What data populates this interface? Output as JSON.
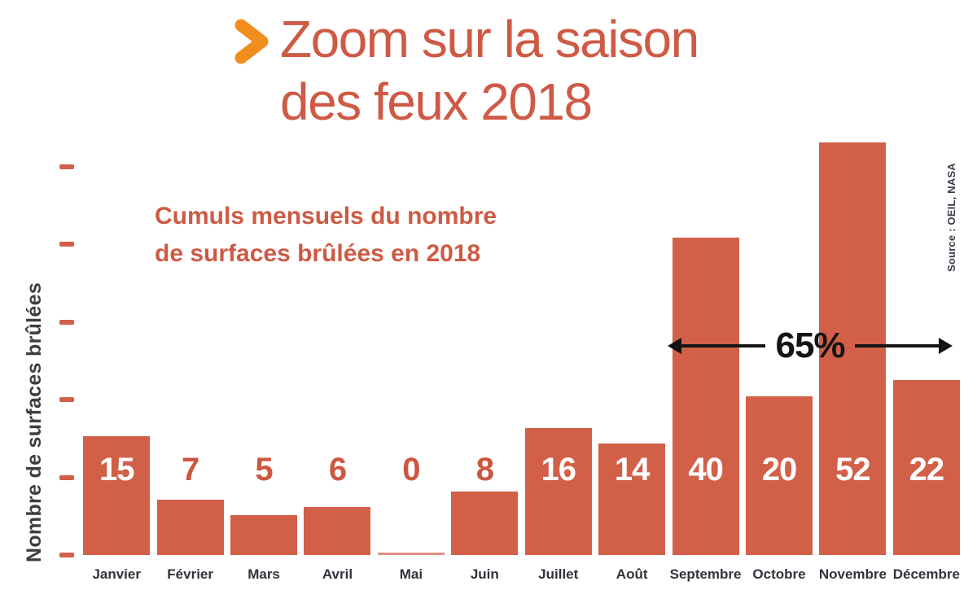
{
  "header": {
    "title_line1": "Zoom sur la saison",
    "title_line2": "des feux 2018",
    "chevron_icon": "chevron-right"
  },
  "subtitle": {
    "line1": "Cumuls mensuels du nombre",
    "line2": "de surfaces brûlées en 2018"
  },
  "chart_data": {
    "type": "bar",
    "title": "Cumuls mensuels du nombre de surfaces brûlées en 2018",
    "xlabel": "",
    "ylabel": "Nombre de surfaces brûlées",
    "categories": [
      "Janvier",
      "Février",
      "Mars",
      "Avril",
      "Mai",
      "Juin",
      "Juillet",
      "Août",
      "Septembre",
      "Octobre",
      "Novembre",
      "Décembre"
    ],
    "values": [
      15,
      7,
      5,
      6,
      0,
      8,
      16,
      14,
      40,
      20,
      52,
      22
    ],
    "y_ticks": [
      0,
      10,
      20,
      30,
      40,
      50
    ],
    "ylim": [
      0,
      53
    ],
    "grid": false,
    "legend": "none",
    "annotation": {
      "label": "65%",
      "from_category": "Septembre",
      "to_category": "Décembre"
    },
    "source": "Source : OEIL, NASA"
  },
  "colors": {
    "bar": "#D25F48",
    "bar_zero": "#E09283",
    "title_text": "#CE5A46",
    "subtitle_text": "#CE5A44",
    "chevron": "#F28C1C",
    "axis_text": "#32323C",
    "ylabel_text": "#3E3E3E",
    "value_label_inside": "#FFFFFF",
    "value_label_above": "#CC5740",
    "annotation_text": "#141414",
    "source_text": "#3B3B4B"
  }
}
